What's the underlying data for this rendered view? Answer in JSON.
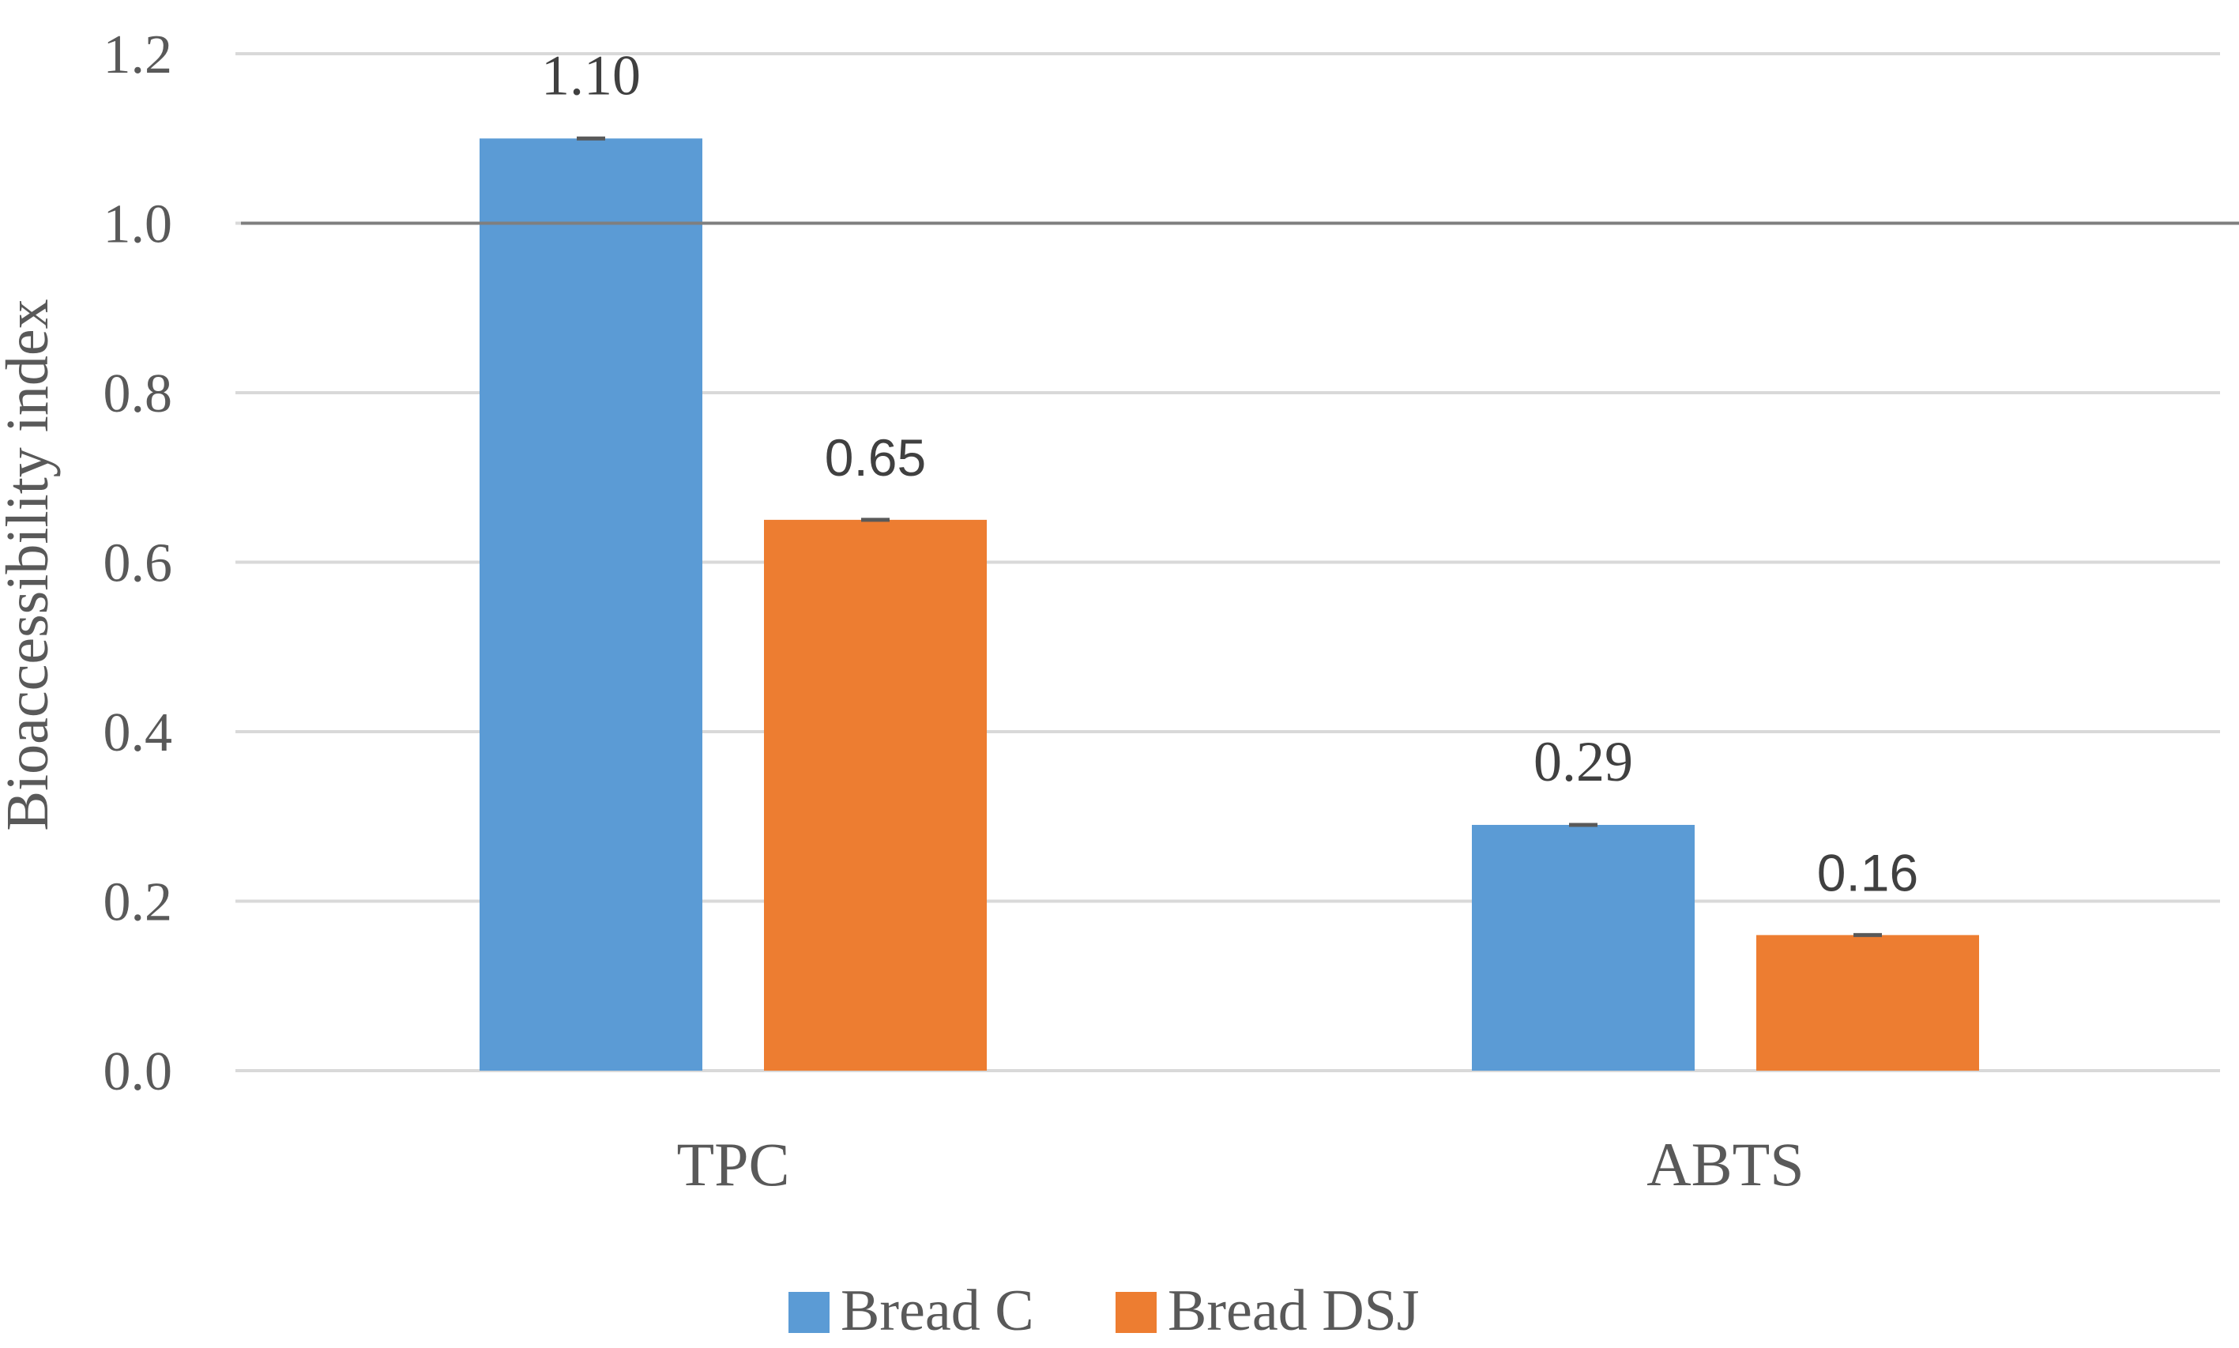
{
  "chart_data": {
    "type": "bar",
    "categories": [
      "TPC",
      "ABTS"
    ],
    "series": [
      {
        "name": "Bread C",
        "values": [
          1.1,
          0.29
        ],
        "labels": [
          "1.10",
          "0.29"
        ],
        "color": "#5B9BD5"
      },
      {
        "name": "Bread DSJ",
        "values": [
          0.65,
          0.16
        ],
        "labels": [
          "0.65",
          "0.16"
        ],
        "color": "#ED7D31"
      }
    ],
    "ylabel": "Bioaccessibility index",
    "xlabel": "",
    "ylim": [
      0,
      1.2
    ],
    "yticks": [
      "0.0",
      "0.2",
      "0.4",
      "0.6",
      "0.8",
      "1.0",
      "1.2"
    ],
    "reference_line": 1.0,
    "grid": true,
    "legend_position": "bottom"
  }
}
